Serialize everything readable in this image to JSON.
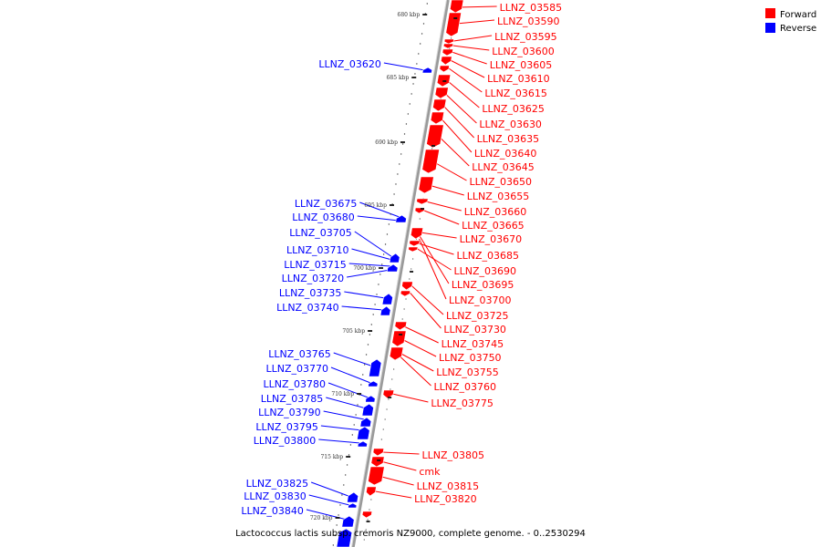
{
  "caption": "Lactococcus lactis subsp. cremoris NZ9000, complete genome. - 0..2530294",
  "legend": [
    {
      "label": "Forward",
      "color": "#ff0000"
    },
    {
      "label": "Reverse",
      "color": "#0000ff"
    }
  ],
  "colors": {
    "forward": "#ff0000",
    "reverse": "#0000ff",
    "backbone": "#888888"
  },
  "ticks": [
    "680 kbp",
    "685 kbp",
    "690 kbp",
    "695 kbp",
    "700 kbp",
    "705 kbp",
    "710 kbp",
    "715 kbp",
    "720 kbp"
  ],
  "forward_genes": [
    "LLNZ_03585",
    "LLNZ_03590",
    "LLNZ_03595",
    "LLNZ_03600",
    "LLNZ_03605",
    "LLNZ_03610",
    "LLNZ_03615",
    "LLNZ_03625",
    "LLNZ_03630",
    "LLNZ_03635",
    "LLNZ_03640",
    "LLNZ_03645",
    "LLNZ_03650",
    "LLNZ_03655",
    "LLNZ_03660",
    "LLNZ_03665",
    "LLNZ_03670",
    "LLNZ_03685",
    "LLNZ_03690",
    "LLNZ_03695",
    "LLNZ_03700",
    "LLNZ_03725",
    "LLNZ_03730",
    "LLNZ_03745",
    "LLNZ_03750",
    "LLNZ_03755",
    "LLNZ_03760",
    "LLNZ_03775",
    "LLNZ_03805",
    "cmk",
    "LLNZ_03815",
    "LLNZ_03820"
  ],
  "reverse_genes": [
    "LLNZ_03620",
    "LLNZ_03675",
    "LLNZ_03680",
    "LLNZ_03705",
    "LLNZ_03710",
    "LLNZ_03715",
    "LLNZ_03720",
    "LLNZ_03735",
    "LLNZ_03740",
    "LLNZ_03765",
    "LLNZ_03770",
    "LLNZ_03780",
    "LLNZ_03785",
    "LLNZ_03790",
    "LLNZ_03795",
    "LLNZ_03800",
    "LLNZ_03825",
    "LLNZ_03830",
    "LLNZ_03840"
  ]
}
